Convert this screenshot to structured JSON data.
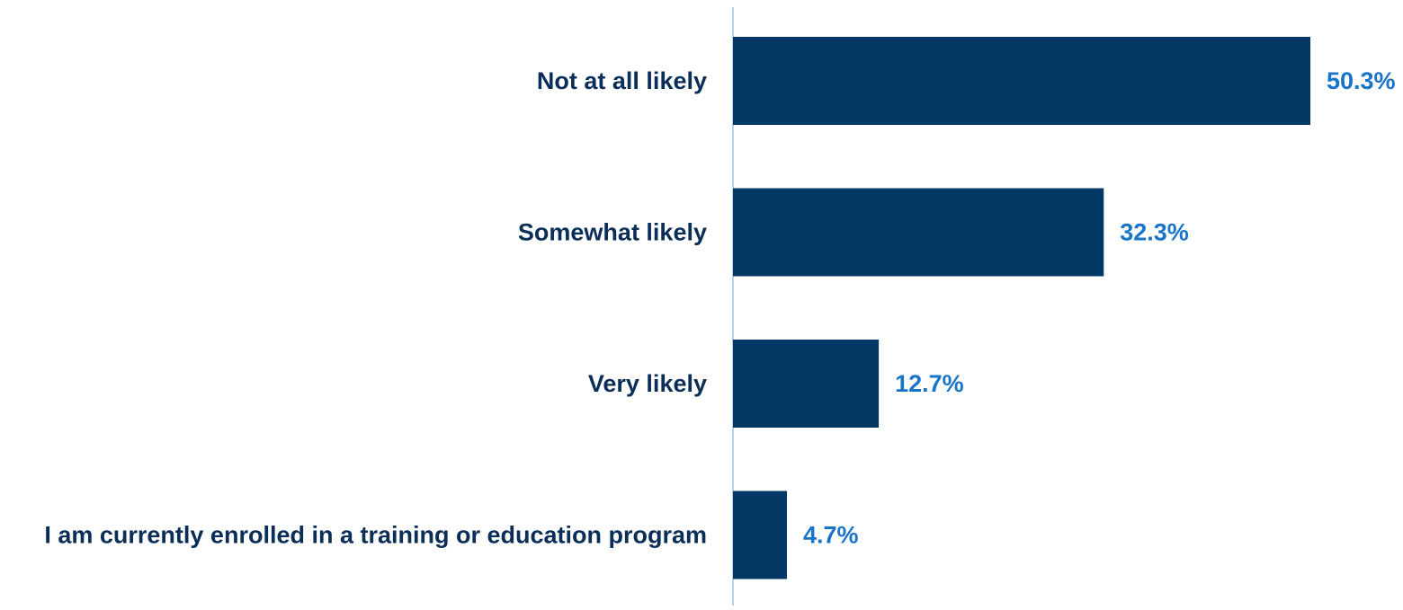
{
  "chart_data": {
    "type": "bar",
    "orientation": "horizontal",
    "title": "",
    "xlabel": "",
    "ylabel": "",
    "categories": [
      "Not at all likely",
      "Somewhat likely",
      "Very likely",
      "I am currently enrolled in a training or education program"
    ],
    "values": [
      50.3,
      32.3,
      12.7,
      4.7
    ],
    "value_labels": [
      "50.3%",
      "32.3%",
      "12.7%",
      "4.7%"
    ],
    "xlim": [
      0,
      55
    ],
    "grid": false,
    "legend": "none"
  },
  "colors": {
    "bar": "#033864",
    "category_label": "#0b2e59",
    "value_label": "#1874c8",
    "axis_line": "#9cc3e6"
  }
}
